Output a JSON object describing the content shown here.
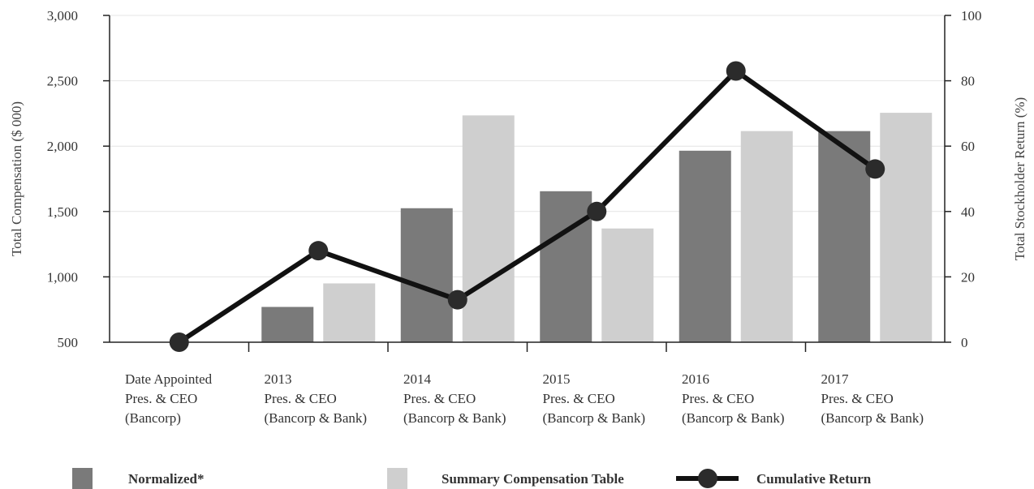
{
  "chart_data": {
    "type": "bar",
    "categories": [
      [
        "Date Appointed",
        "Pres. & CEO",
        "(Bancorp)"
      ],
      [
        "2013",
        "Pres. & CEO",
        "(Bancorp & Bank)"
      ],
      [
        "2014",
        "Pres. & CEO",
        "(Bancorp & Bank)"
      ],
      [
        "2015",
        "Pres. & CEO",
        "(Bancorp & Bank)"
      ],
      [
        "2016",
        "Pres. & CEO",
        "(Bancorp & Bank)"
      ],
      [
        "2017",
        "Pres. & CEO",
        "(Bancorp & Bank)"
      ]
    ],
    "series": [
      {
        "name": "Normalized*",
        "type": "bar",
        "axis": "left",
        "color": "#7a7a7a",
        "values": [
          null,
          770,
          1525,
          1655,
          1965,
          2115
        ]
      },
      {
        "name": "Summary Compensation Table",
        "type": "bar",
        "axis": "left",
        "color": "#cfcfcf",
        "values": [
          null,
          950,
          2235,
          1370,
          2115,
          2255
        ]
      },
      {
        "name": "Cumulative Return",
        "type": "line",
        "axis": "right",
        "color": "#111111",
        "values": [
          0,
          28,
          13,
          40,
          83,
          53
        ]
      }
    ],
    "ylabel_left": "Total Compensation ($ 000)",
    "ylabel_right": "Total Stockholder Return (%)",
    "ylim_left": [
      500,
      3000
    ],
    "yticks_left": [
      500,
      1000,
      1500,
      2000,
      2500,
      3000
    ],
    "yticklabels_left": [
      "500",
      "1,000",
      "1,500",
      "2,000",
      "2,500",
      "3,000"
    ],
    "ylim_right": [
      0,
      100
    ],
    "yticks_right": [
      0,
      20,
      40,
      60,
      80,
      100
    ],
    "yticklabels_right": [
      "0",
      "20",
      "40",
      "60",
      "80",
      "100"
    ],
    "grid": true,
    "legend_position": "bottom"
  }
}
